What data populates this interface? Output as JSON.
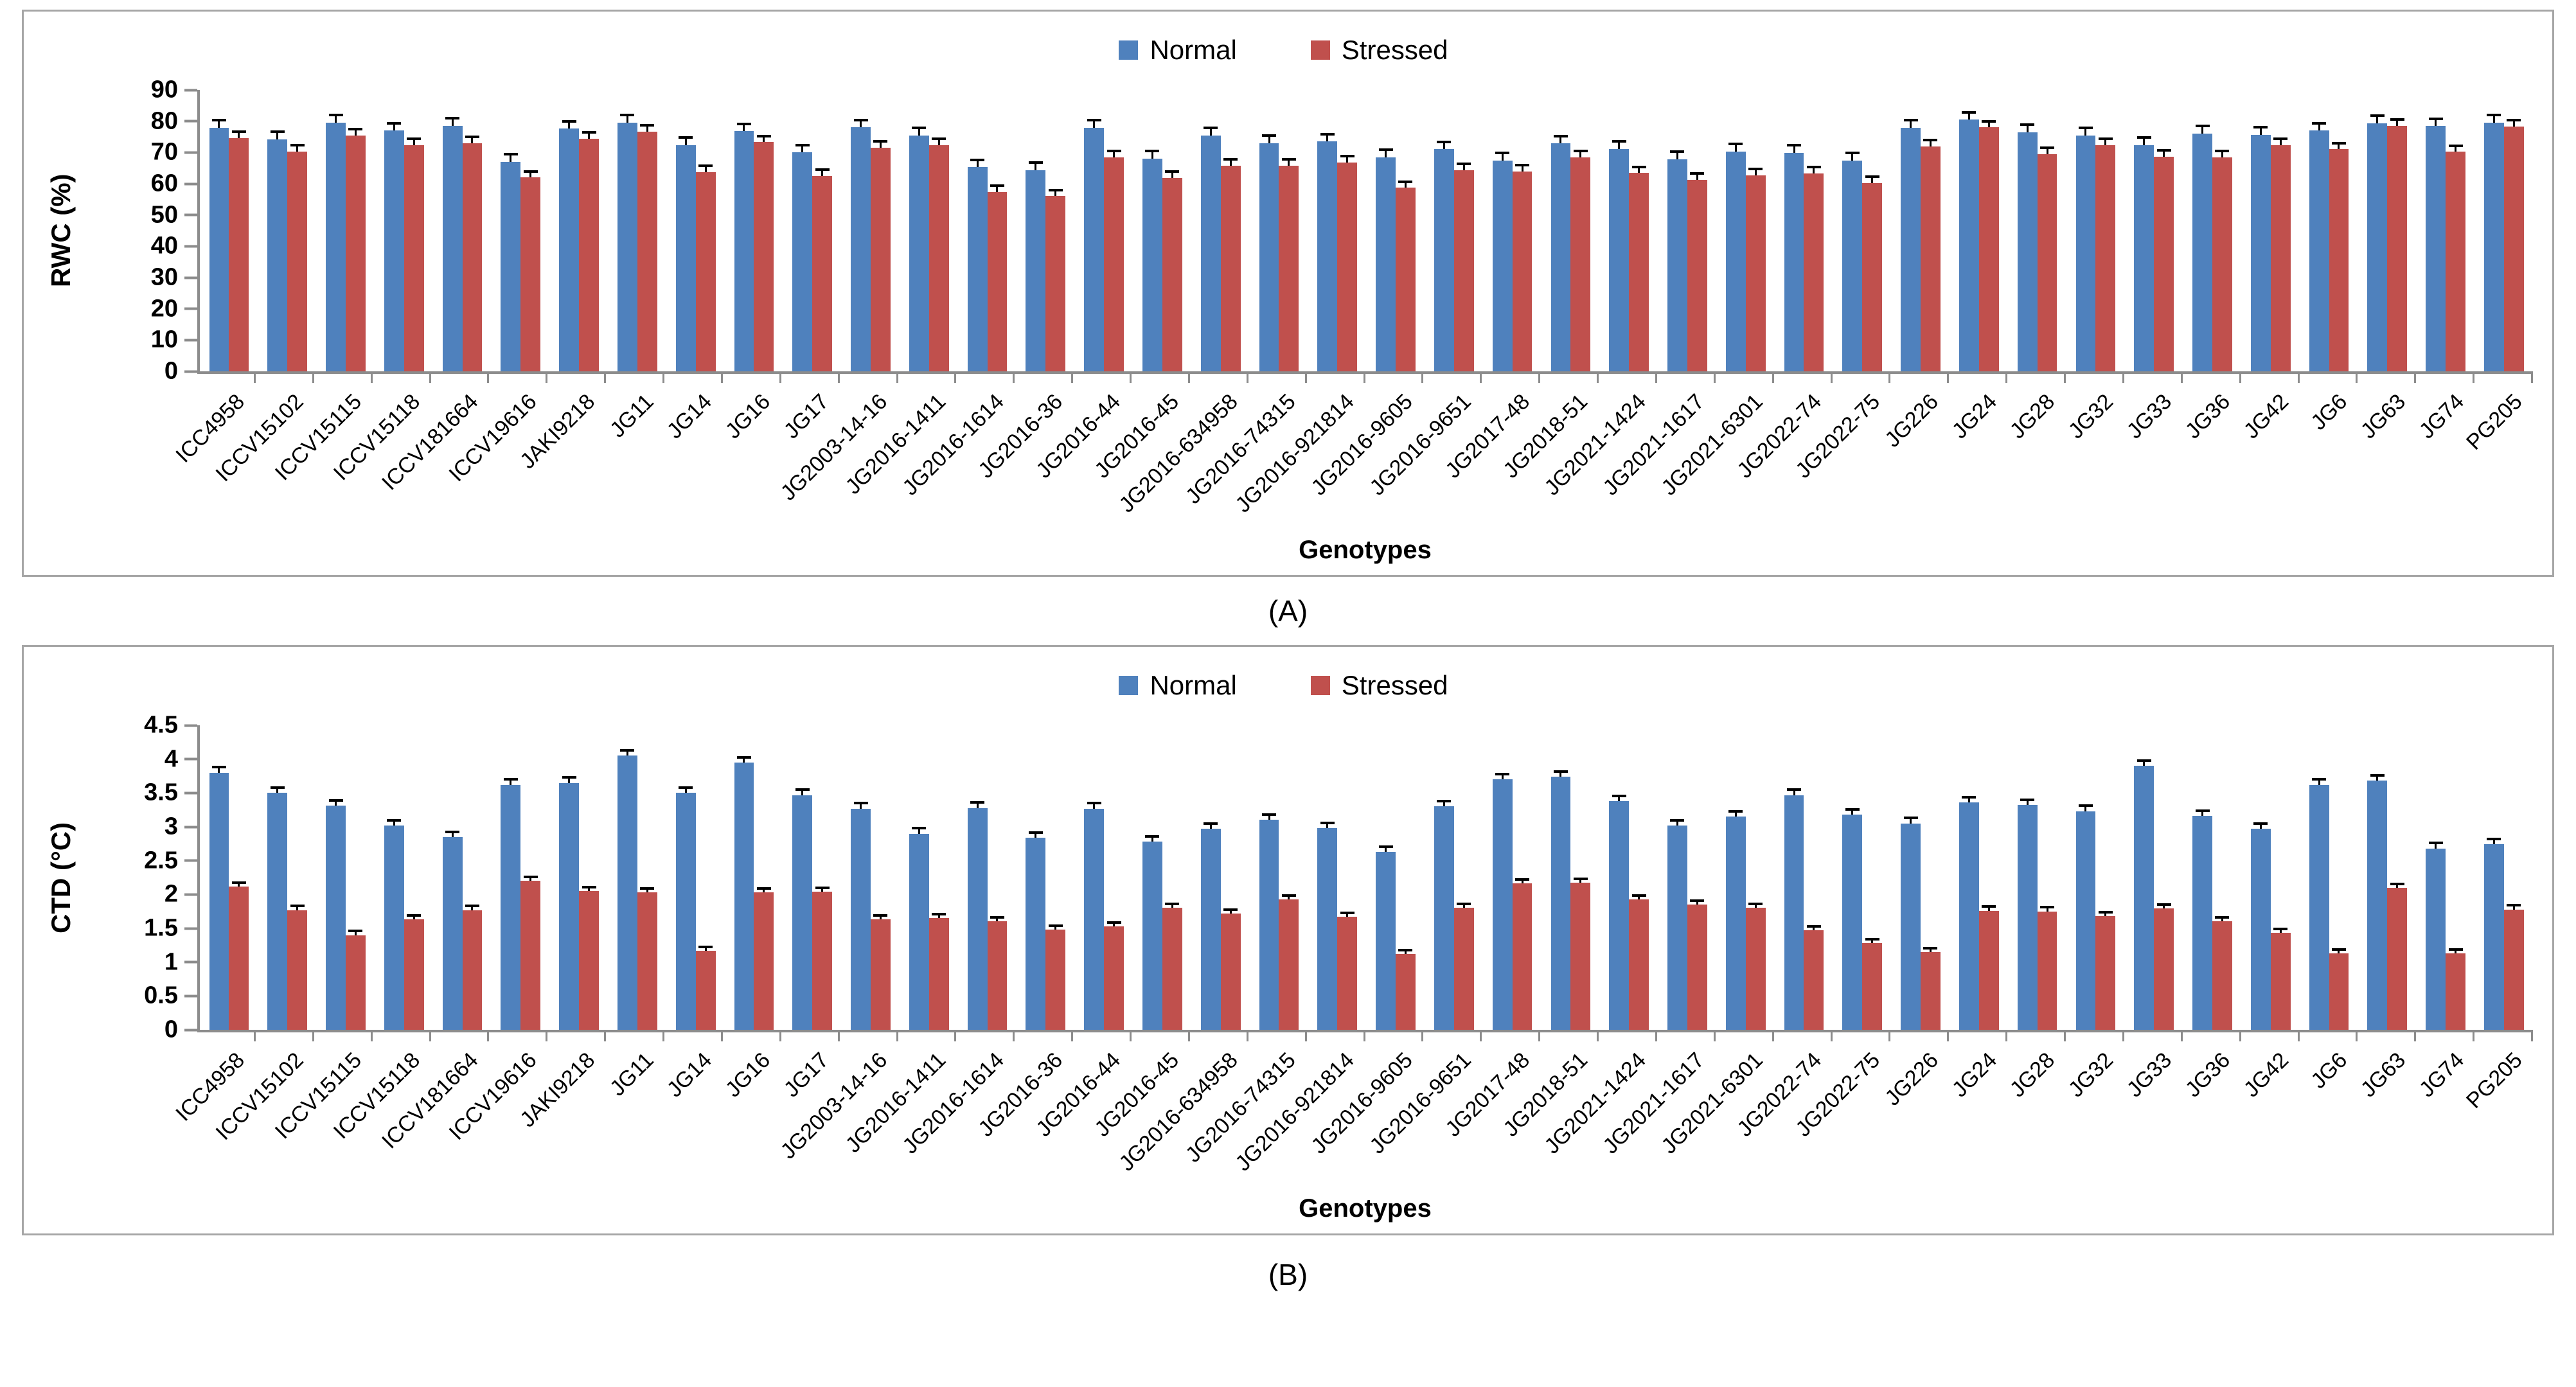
{
  "figure": {
    "captions": {
      "panel_a": "(A)",
      "panel_b": "(B)"
    },
    "colors": {
      "normal": "#4F81BD",
      "stressed": "#C0504D",
      "axis": "#8C8C8C",
      "error_bar": "#000000",
      "panel_border": "#A6A6A6"
    }
  },
  "chart_data": [
    {
      "id": "A",
      "type": "bar",
      "title": "",
      "ylabel": "RWC (%)",
      "xlabel": "Genotypes",
      "caption": "(A)",
      "ylim": [
        0,
        90
      ],
      "ytick_labels": [
        "0",
        "10",
        "20",
        "30",
        "40",
        "50",
        "60",
        "70",
        "80",
        "90"
      ],
      "grid": false,
      "legend_position": "top-center",
      "categories": [
        "ICC4958",
        "ICCV15102",
        "ICCV15115",
        "ICCV15118",
        "ICCV181664",
        "ICCV19616",
        "JAKI9218",
        "JG11",
        "JG14",
        "JG16",
        "JG17",
        "JG2003-14-16",
        "JG2016-1411",
        "JG2016-1614",
        "JG2016-36",
        "JG2016-44",
        "JG2016-45",
        "JG2016-634958",
        "JG2016-74315",
        "JG2016-921814",
        "JG2016-9605",
        "JG2016-9651",
        "JG2017-48",
        "JG2018-51",
        "JG2021-1424",
        "JG2021-1617",
        "JG2021-6301",
        "JG2022-74",
        "JG2022-75",
        "JG226",
        "JG24",
        "JG28",
        "JG32",
        "JG33",
        "JG36",
        "JG42",
        "JG6",
        "JG63",
        "JG74",
        "PG205"
      ],
      "series": [
        {
          "name": "Normal",
          "color": "#4F81BD",
          "error_bar": 2.0,
          "values": [
            77.9,
            74.2,
            79.5,
            77.0,
            78.5,
            67.0,
            77.6,
            79.6,
            72.3,
            76.8,
            70.0,
            78.0,
            75.5,
            65.3,
            64.4,
            77.9,
            68.0,
            75.4,
            73.0,
            73.5,
            68.5,
            71.0,
            67.5,
            72.9,
            71.1,
            67.9,
            70.3,
            69.9,
            67.4,
            77.9,
            80.5,
            76.5,
            75.4,
            72.4,
            76.0,
            75.6,
            77.0,
            79.4,
            78.4,
            79.5
          ]
        },
        {
          "name": "Stressed",
          "color": "#C0504D",
          "error_bar": 1.6,
          "values": [
            74.6,
            70.3,
            75.5,
            72.4,
            73.0,
            62.0,
            74.4,
            76.6,
            63.7,
            73.3,
            62.5,
            71.6,
            72.3,
            57.3,
            56.0,
            68.5,
            61.9,
            65.8,
            65.7,
            66.8,
            58.7,
            64.3,
            63.9,
            68.4,
            63.4,
            61.3,
            62.7,
            63.3,
            60.2,
            71.9,
            78.0,
            69.4,
            72.4,
            68.7,
            68.4,
            72.4,
            71.0,
            78.5,
            70.2,
            78.3
          ]
        }
      ]
    },
    {
      "id": "B",
      "type": "bar",
      "title": "",
      "ylabel": "CTD (°C)",
      "xlabel": "Genotypes",
      "caption": "(B)",
      "ylim": [
        0,
        4.5
      ],
      "ytick_labels": [
        "0",
        "0.5",
        "1",
        "1.5",
        "2",
        "2.5",
        "3",
        "3.5",
        "4",
        "4.5"
      ],
      "grid": false,
      "legend_position": "top-center",
      "categories": [
        "ICC4958",
        "ICCV15102",
        "ICCV15115",
        "ICCV15118",
        "ICCV181664",
        "ICCV19616",
        "JAKI9218",
        "JG11",
        "JG14",
        "JG16",
        "JG17",
        "JG2003-14-16",
        "JG2016-1411",
        "JG2016-1614",
        "JG2016-36",
        "JG2016-44",
        "JG2016-45",
        "JG2016-634958",
        "JG2016-74315",
        "JG2016-921814",
        "JG2016-9605",
        "JG2016-9651",
        "JG2017-48",
        "JG2018-51",
        "JG2021-1424",
        "JG2021-1617",
        "JG2021-6301",
        "JG2022-74",
        "JG2022-75",
        "JG226",
        "JG24",
        "JG28",
        "JG32",
        "JG33",
        "JG36",
        "JG42",
        "JG6",
        "JG63",
        "JG74",
        "PG205"
      ],
      "series": [
        {
          "name": "Normal",
          "color": "#4F81BD",
          "error_bar": 0.06,
          "values": [
            3.8,
            3.5,
            3.31,
            3.02,
            2.85,
            3.62,
            3.65,
            4.05,
            3.5,
            3.95,
            3.47,
            3.27,
            2.9,
            3.28,
            2.84,
            3.27,
            2.78,
            2.97,
            3.1,
            2.98,
            2.63,
            3.3,
            3.7,
            3.74,
            3.38,
            3.02,
            3.15,
            3.47,
            3.18,
            3.05,
            3.36,
            3.32,
            3.23,
            3.9,
            3.16,
            2.97,
            3.62,
            3.68,
            2.68,
            2.74
          ]
        },
        {
          "name": "Stressed",
          "color": "#C0504D",
          "error_bar": 0.04,
          "values": [
            2.12,
            1.77,
            1.4,
            1.63,
            1.77,
            2.2,
            2.05,
            2.03,
            1.17,
            2.03,
            2.04,
            1.63,
            1.65,
            1.6,
            1.48,
            1.53,
            1.8,
            1.72,
            1.93,
            1.67,
            1.12,
            1.8,
            2.16,
            2.17,
            1.93,
            1.85,
            1.8,
            1.47,
            1.28,
            1.15,
            1.76,
            1.75,
            1.68,
            1.79,
            1.6,
            1.43,
            1.13,
            2.1,
            1.13,
            1.78
          ]
        }
      ]
    }
  ]
}
